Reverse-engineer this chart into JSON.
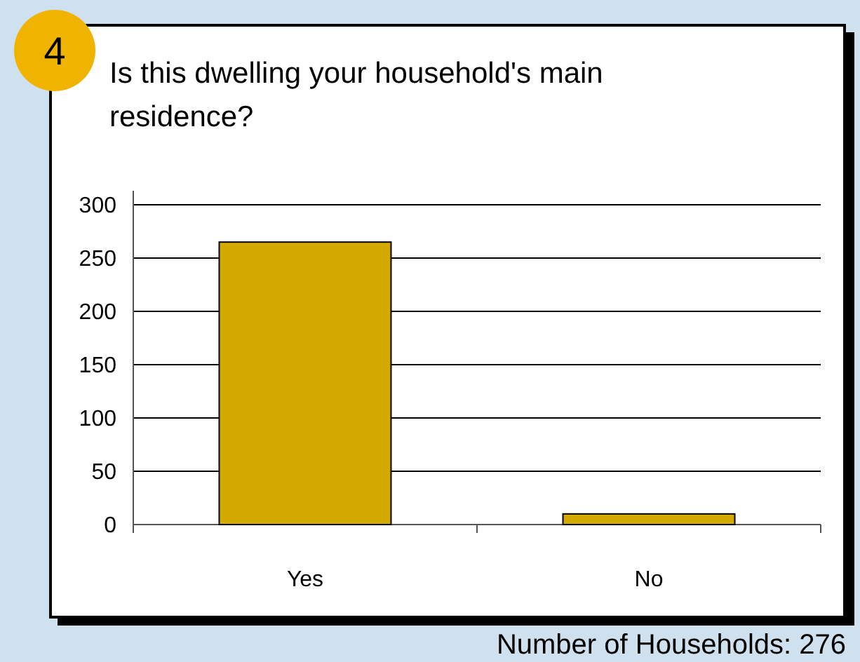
{
  "chart_data": {
    "type": "bar",
    "title": "Is this dwelling your household's main residence?",
    "categories": [
      "Yes",
      "No"
    ],
    "values": [
      265,
      10
    ],
    "color": "#d4aa00",
    "ylim": [
      0,
      300
    ],
    "yticks": [
      0,
      50,
      100,
      150,
      200,
      250,
      300
    ],
    "grid": "y",
    "annotations": [
      "4",
      "Number of Households: 276"
    ]
  }
}
